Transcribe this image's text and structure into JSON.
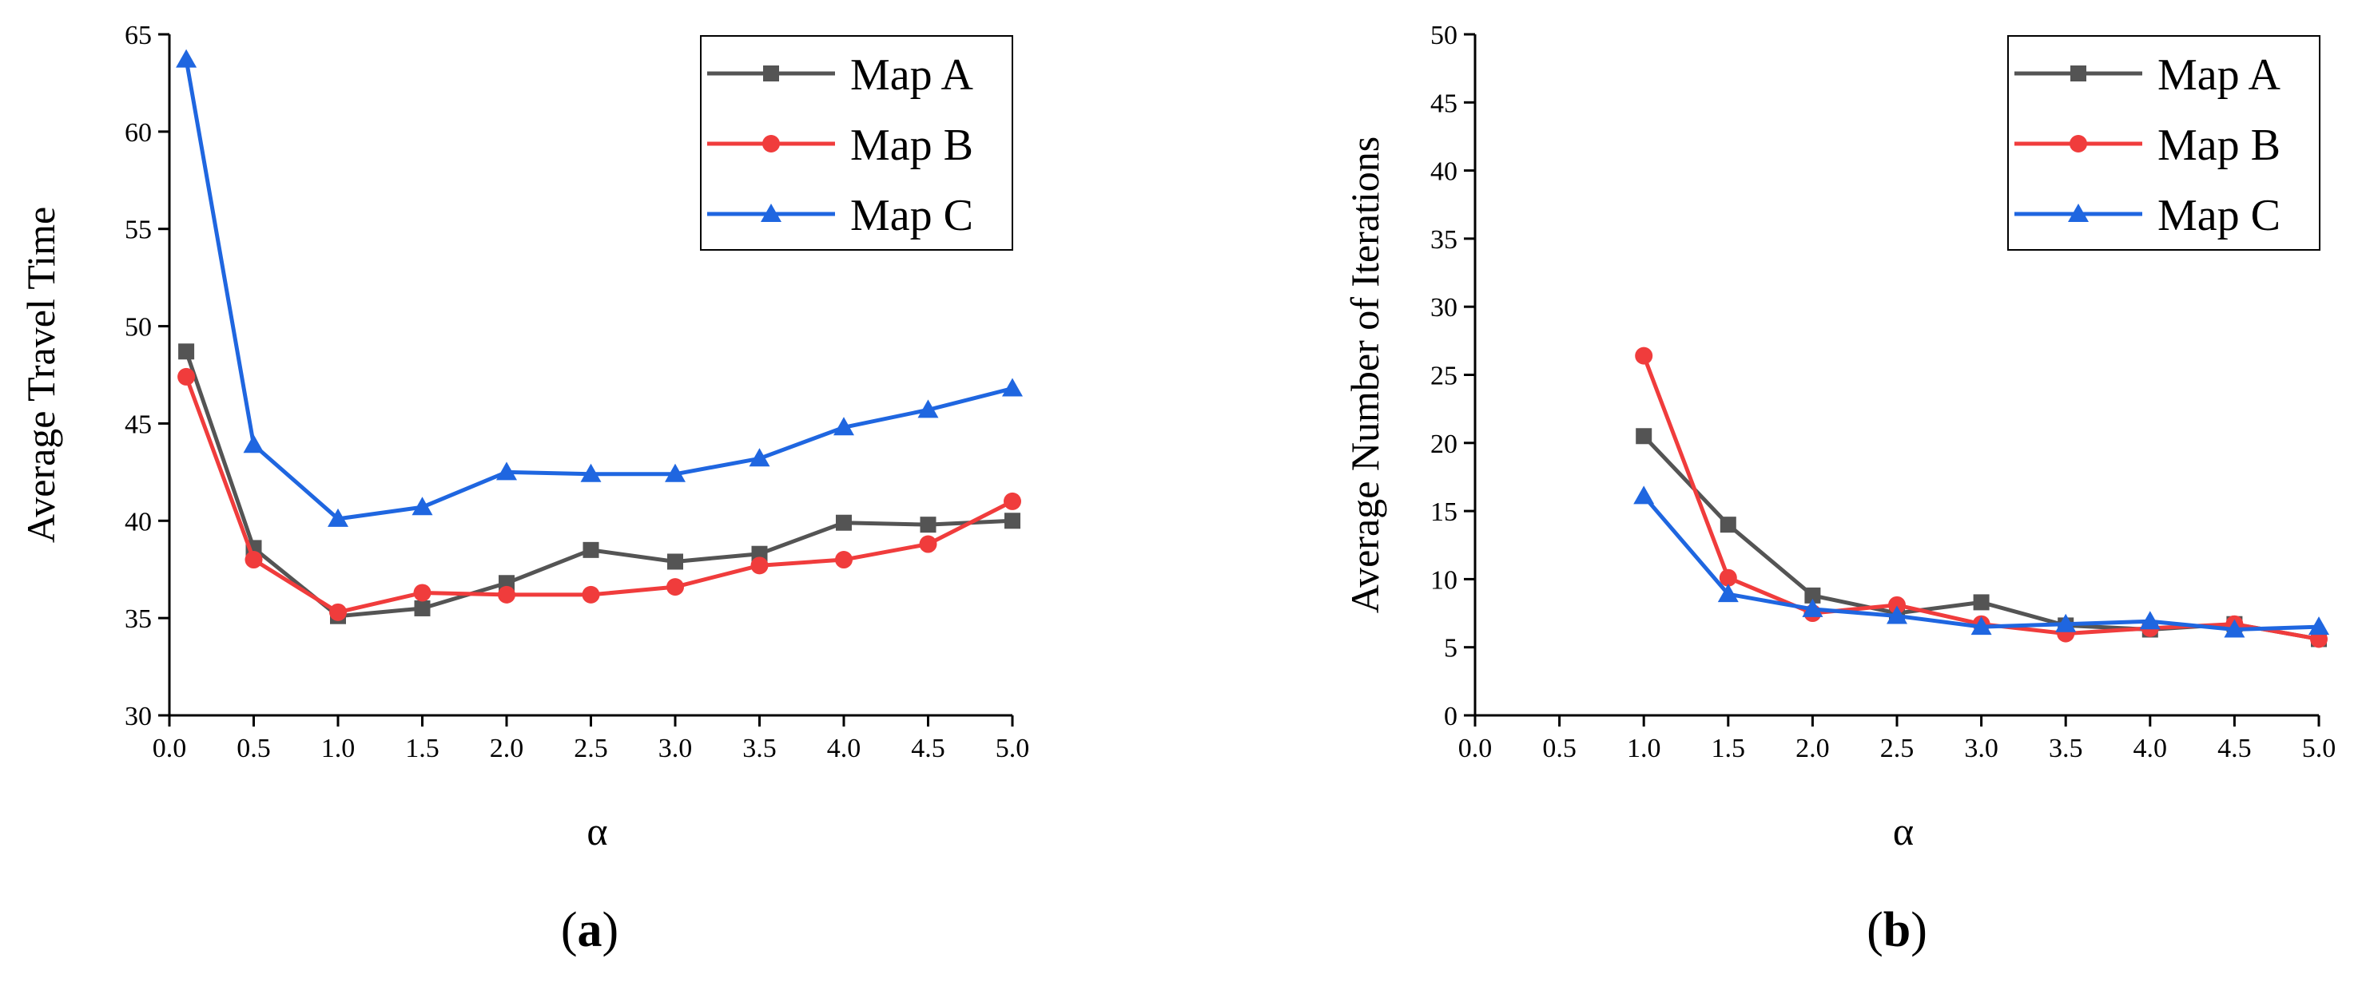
{
  "chart_data": [
    {
      "id": "a",
      "type": "line",
      "caption_letter": "a",
      "xlabel": "α",
      "ylabel": "Average Travel Time",
      "xlim": [
        0.0,
        5.0
      ],
      "ylim": [
        30,
        65
      ],
      "xticks": [
        0.0,
        0.5,
        1.0,
        1.5,
        2.0,
        2.5,
        3.0,
        3.5,
        4.0,
        4.5,
        5.0
      ],
      "xtick_labels": [
        "0.0",
        "0.5",
        "1.0",
        "1.5",
        "2.0",
        "2.5",
        "3.0",
        "3.5",
        "4.0",
        "4.5",
        "5.0"
      ],
      "yticks": [
        30,
        35,
        40,
        45,
        50,
        55,
        60,
        65
      ],
      "ytick_labels": [
        "30",
        "35",
        "40",
        "45",
        "50",
        "55",
        "60",
        "65"
      ],
      "legend_position": "top-right",
      "x": [
        0.1,
        0.5,
        1.0,
        1.5,
        2.0,
        2.5,
        3.0,
        3.5,
        4.0,
        4.5,
        5.0
      ],
      "series": [
        {
          "name": "Map A",
          "color": "#545454",
          "marker": "square",
          "values": [
            48.7,
            38.6,
            35.1,
            35.5,
            36.8,
            38.5,
            37.9,
            38.3,
            39.9,
            39.8,
            40.0
          ]
        },
        {
          "name": "Map B",
          "color": "#f03c3c",
          "marker": "circle",
          "values": [
            47.4,
            38.0,
            35.3,
            36.3,
            36.2,
            36.2,
            36.6,
            37.7,
            38.0,
            38.8,
            41.0
          ]
        },
        {
          "name": "Map C",
          "color": "#1f66e0",
          "marker": "triangle",
          "values": [
            63.7,
            43.9,
            40.1,
            40.7,
            42.5,
            42.4,
            42.4,
            43.2,
            44.8,
            45.7,
            46.8
          ]
        }
      ]
    },
    {
      "id": "b",
      "type": "line",
      "caption_letter": "b",
      "xlabel": "α",
      "ylabel": "Average Number of Iterations",
      "xlim": [
        0.0,
        5.0
      ],
      "ylim": [
        0,
        50
      ],
      "xticks": [
        0.0,
        0.5,
        1.0,
        1.5,
        2.0,
        2.5,
        3.0,
        3.5,
        4.0,
        4.5,
        5.0
      ],
      "xtick_labels": [
        "0.0",
        "0.5",
        "1.0",
        "1.5",
        "2.0",
        "2.5",
        "3.0",
        "3.5",
        "4.0",
        "4.5",
        "5.0"
      ],
      "yticks": [
        0,
        5,
        10,
        15,
        20,
        25,
        30,
        35,
        40,
        45,
        50
      ],
      "ytick_labels": [
        "0",
        "5",
        "10",
        "15",
        "20",
        "25",
        "30",
        "35",
        "40",
        "45",
        "50"
      ],
      "legend_position": "top-right",
      "x": [
        1.0,
        1.5,
        2.0,
        2.5,
        3.0,
        3.5,
        4.0,
        4.5,
        5.0
      ],
      "series": [
        {
          "name": "Map A",
          "color": "#545454",
          "marker": "square",
          "values": [
            20.5,
            14.0,
            8.8,
            7.5,
            8.3,
            6.6,
            6.3,
            6.7,
            5.6
          ]
        },
        {
          "name": "Map B",
          "color": "#f03c3c",
          "marker": "circle",
          "values": [
            26.4,
            10.1,
            7.5,
            8.1,
            6.7,
            6.0,
            6.4,
            6.7,
            5.6
          ]
        },
        {
          "name": "Map C",
          "color": "#1f66e0",
          "marker": "triangle",
          "values": [
            16.1,
            8.9,
            7.8,
            7.3,
            6.5,
            6.7,
            6.9,
            6.3,
            6.5
          ]
        }
      ]
    }
  ]
}
